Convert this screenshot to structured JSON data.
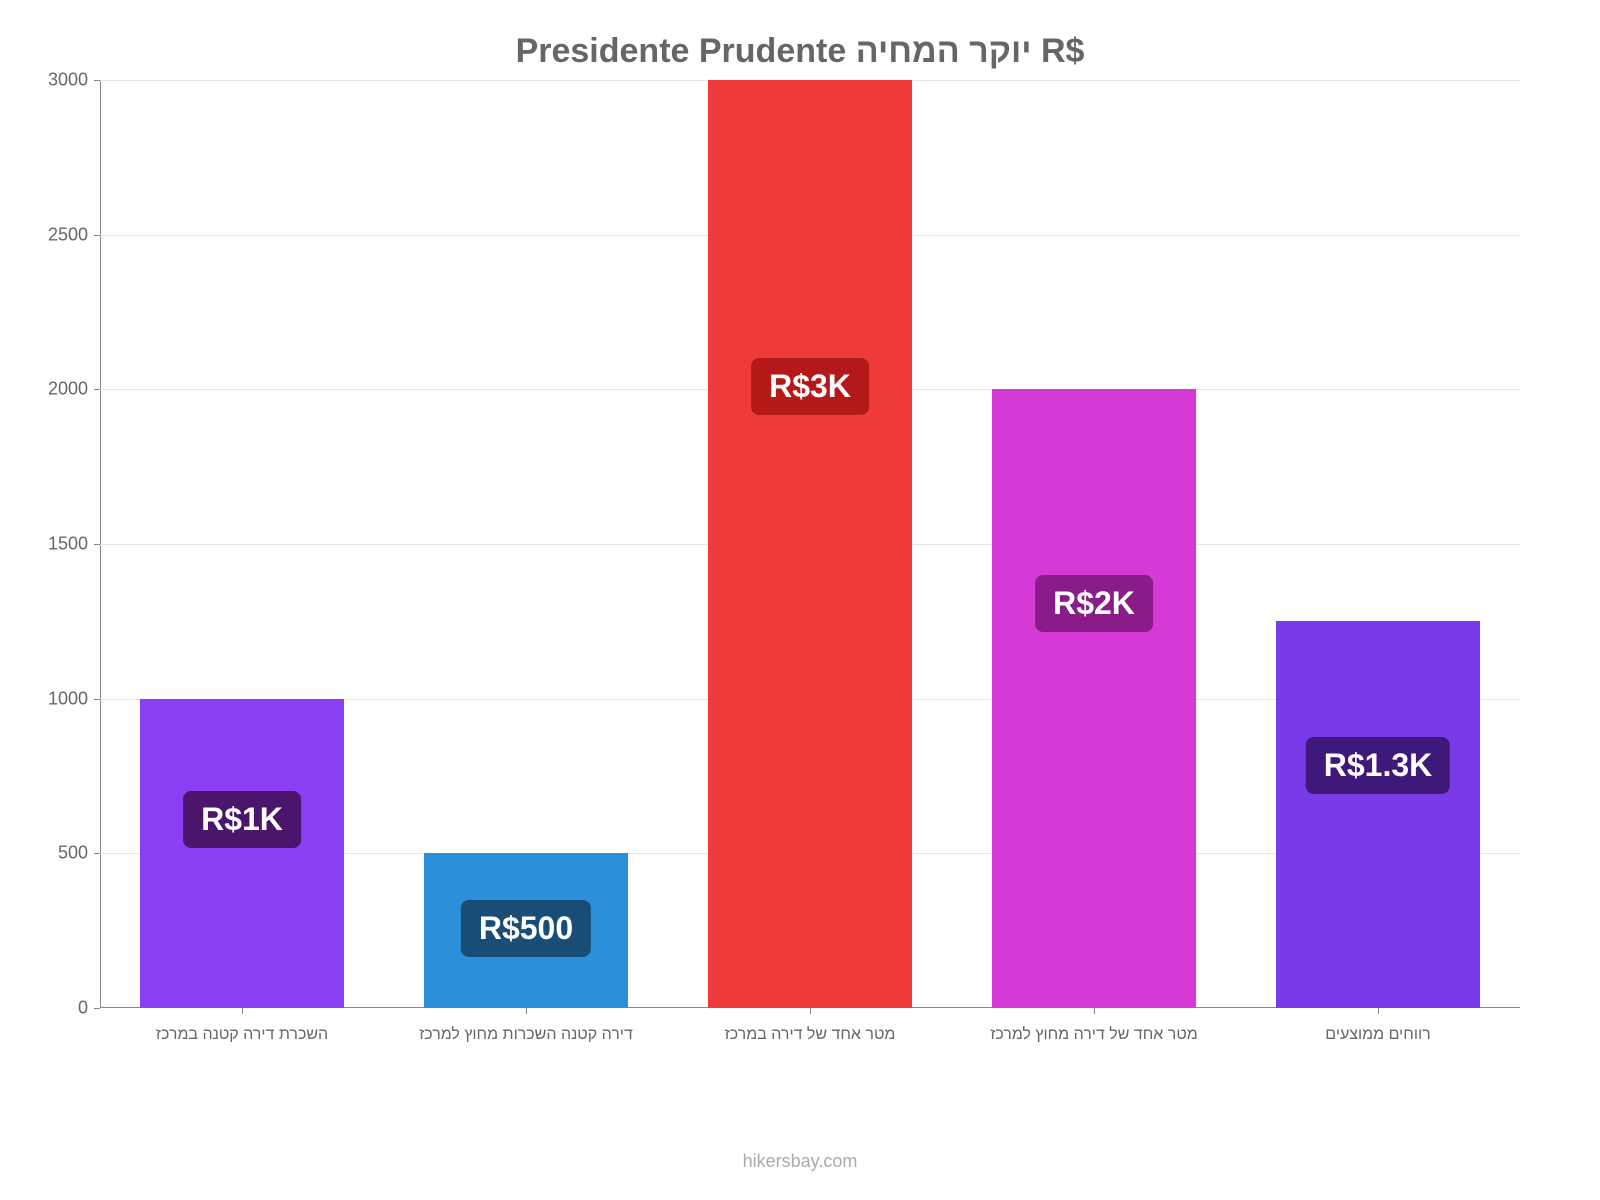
{
  "chart": {
    "type": "bar",
    "title": "Presidente Prudente יוקר המחיה R$",
    "title_fontsize": 34,
    "title_color": "#666666",
    "background_color": "#ffffff",
    "grid_color": "#e6e6e6",
    "axis_color": "#888888",
    "tick_label_color": "#666666",
    "xtick_fontsize": 16,
    "ytick_fontsize": 18,
    "ylim": [
      0,
      3000
    ],
    "ytick_step": 500,
    "yticks": [
      0,
      500,
      1000,
      1500,
      2000,
      2500,
      3000
    ],
    "bar_width_ratio": 0.72,
    "categories": [
      "השכרת דירה קטנה במרכז",
      "דירה קטנה השכרות מחוץ למרכז",
      "מטר אחד של דירה במרכז",
      "מטר אחד של דירה מחוץ למרכז",
      "רווחים ממוצעים"
    ],
    "values": [
      1000,
      500,
      3000,
      2000,
      1250
    ],
    "value_labels": [
      "R$1K",
      "R$500",
      "R$3K",
      "R$2K",
      "R$1.3K"
    ],
    "bar_colors": [
      "#8b3ff2",
      "#2b90d9",
      "#ef3a3a",
      "#d63ad6",
      "#7a3ae8"
    ],
    "badge_colors": [
      "#4a156b",
      "#1a4d75",
      "#b31919",
      "#8a1c8a",
      "#3f197a"
    ],
    "badge_fontsize": 32,
    "attribution": "hikersbay.com",
    "attribution_color": "#aaaaaa"
  }
}
